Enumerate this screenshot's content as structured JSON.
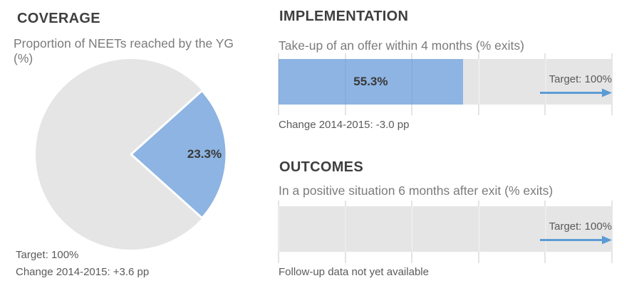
{
  "colors": {
    "accent_blue": "#8DB4E2",
    "arrow_blue": "#5B9BD5",
    "neutral_gray": "#E5E5E5",
    "grid_gray": "#C9C9C9",
    "title_gray": "#3F3F3F",
    "subtitle_gray": "#7B7B7B",
    "text_gray": "#5A5A5A",
    "value_gray": "#383838"
  },
  "chart_data": [
    {
      "id": "coverage",
      "type": "pie",
      "title": "COVERAGE",
      "subtitle": "Proportion of NEETs reached by the YG (%)",
      "slices": [
        {
          "label": "value",
          "value": 23.3,
          "data_label": "23.3%",
          "color": "#8DB4E2"
        },
        {
          "label": "remainder",
          "value": 76.7,
          "data_label": "",
          "color": "#E5E5E5"
        }
      ],
      "layout": {
        "value_slice_centered_at_clock": "3 o'clock",
        "legend": "none"
      },
      "annotations": [
        "Target: 100%",
        "Change 2014-2015: +3.6 pp"
      ]
    },
    {
      "id": "implementation",
      "type": "bar",
      "orientation": "horizontal",
      "title": "IMPLEMENTATION",
      "subtitle": "Take-up of an offer within 4 months (% exits)",
      "categories": [
        "Take-up of an offer within 4 months"
      ],
      "values": [
        55.3
      ],
      "data_labels": [
        "55.3%"
      ],
      "color": "#8DB4E2",
      "xlim": [
        0,
        100
      ],
      "x_tick_step": 20,
      "grid": true,
      "legend": "none",
      "target": {
        "value": 100,
        "label": "Target: 100%"
      },
      "annotations": [
        "Change 2014-2015: -3.0 pp"
      ]
    },
    {
      "id": "outcomes",
      "type": "bar",
      "orientation": "horizontal",
      "title": "OUTCOMES",
      "subtitle": "In a positive situation 6 months after exit (% exits)",
      "categories": [
        "In a positive situation 6 months after exit"
      ],
      "values": [
        null
      ],
      "data_labels": [
        ""
      ],
      "color": "#8DB4E2",
      "xlim": [
        0,
        100
      ],
      "x_tick_step": 20,
      "grid": true,
      "legend": "none",
      "target": {
        "value": 100,
        "label": "Target: 100%"
      },
      "note": "Follow-up data not yet available"
    }
  ]
}
